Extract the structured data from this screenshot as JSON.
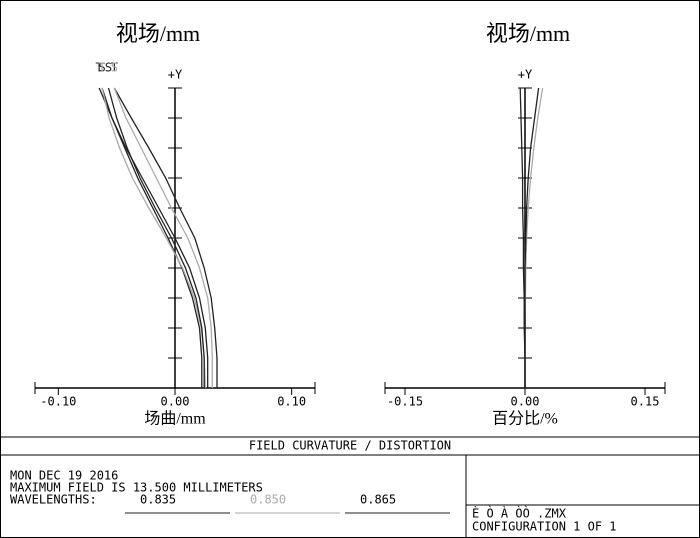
{
  "chart_data": [
    {
      "type": "line",
      "title": "视场/mm",
      "xlabel": "场曲/mm",
      "ylabel": "+Y",
      "xlim": [
        -0.12,
        0.12
      ],
      "xticks": [
        {
          "value": -0.1,
          "label": "-0.10"
        },
        {
          "value": 0,
          "label": "0.00"
        },
        {
          "value": 0.1,
          "label": "0.10"
        }
      ],
      "ylim": [
        0,
        13.5
      ],
      "yticks": [
        0,
        1.35,
        2.7,
        4.05,
        5.4,
        6.75,
        8.1,
        9.45,
        10.8,
        12.15,
        13.5
      ],
      "y": [
        0,
        1.35,
        2.7,
        4.05,
        5.4,
        6.75,
        8.1,
        9.45,
        10.8,
        12.15,
        13.5
      ],
      "series": [
        {
          "name": "T",
          "color": "#222222",
          "values": [
            0.036,
            0.036,
            0.034,
            0.031,
            0.025,
            0.017,
            0.004,
            -0.008,
            -0.0225,
            -0.0375,
            -0.052
          ]
        },
        {
          "name": "S",
          "color": "#aaaaaa",
          "values": [
            0.032,
            0.032,
            0.031,
            0.028,
            0.021,
            0.011,
            -0.003,
            -0.016,
            -0.029,
            -0.042,
            -0.052
          ]
        },
        {
          "name": "T",
          "color": "#222222",
          "values": [
            0.028,
            0.028,
            0.026,
            0.021,
            0.0125,
            0,
            -0.014,
            -0.028,
            -0.042,
            -0.054,
            -0.065
          ]
        },
        {
          "name": "S",
          "color": "#222222",
          "values": [
            0.023,
            0.023,
            0.021,
            0.015,
            0.006,
            -0.006,
            -0.019,
            -0.032,
            -0.043,
            -0.054,
            -0.0625
          ]
        },
        {
          "name": "T",
          "color": "#aaaaaa",
          "values": [
            0.026,
            0.025,
            0.0225,
            0.0165,
            0.0065,
            -0.0075,
            -0.0225,
            -0.0365,
            -0.0475,
            -0.0565,
            -0.0625
          ]
        },
        {
          "name": "S",
          "color": "#222222",
          "values": [
            0.025,
            0.025,
            0.023,
            0.018,
            0.009,
            -0.003,
            -0.017,
            -0.03,
            -0.041,
            -0.05,
            -0.057
          ]
        }
      ]
    },
    {
      "type": "line",
      "title": "视场/mm",
      "xlabel": "百分比/%",
      "ylabel": "+Y",
      "xlim": [
        -0.175,
        0.175
      ],
      "xticks": [
        {
          "value": -0.15,
          "label": "-0.15"
        },
        {
          "value": 0,
          "label": "0.00"
        },
        {
          "value": 0.15,
          "label": "0.15"
        }
      ],
      "ylim": [
        0,
        13.5
      ],
      "yticks": [
        0,
        1.35,
        2.7,
        4.05,
        5.4,
        6.75,
        8.1,
        9.45,
        10.8,
        12.15,
        13.5
      ],
      "y": [
        0,
        1.35,
        2.7,
        4.05,
        5.4,
        6.75,
        8.1,
        9.45,
        10.8,
        12.15,
        13.5
      ],
      "series": [
        {
          "color": "#aaaaaa",
          "values": [
            0,
            0,
            0,
            0.0005,
            0.001,
            0.002,
            0.004,
            0.007,
            0.011,
            0.016,
            0.022
          ]
        },
        {
          "color": "#222222",
          "values": [
            0,
            0,
            0,
            0,
            0,
            0.001,
            0.002,
            0.004,
            0.007,
            0.012,
            0.017
          ]
        },
        {
          "color": "#222222",
          "values": [
            0,
            0,
            -0.001,
            -0.001,
            -0.002,
            -0.002,
            -0.003,
            -0.003,
            -0.004,
            -0.005,
            -0.006
          ]
        }
      ]
    }
  ],
  "footer": {
    "title": "FIELD CURVATURE / DISTORTION",
    "date": "MON DEC 19 2016",
    "field": "MAXIMUM FIELD IS 13.500 MILLIMETERS",
    "wavelengths_label": "WAVELENGTHS:",
    "wavelengths": [
      "0.835",
      "0.850",
      "0.865"
    ],
    "file": "È Ò  À  ÒÒ        .ZMX",
    "configuration": "CONFIGURATION  1 OF  1"
  }
}
